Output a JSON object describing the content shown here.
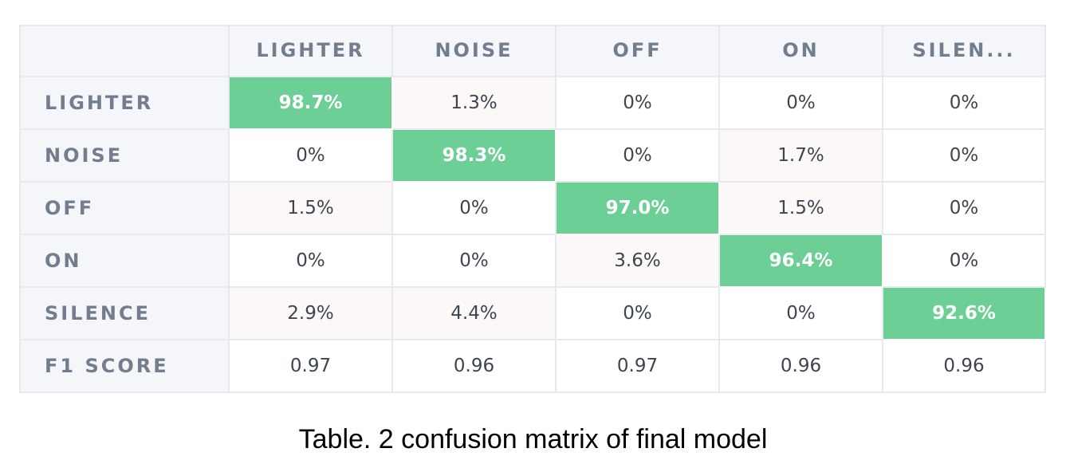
{
  "chart_data": {
    "type": "heatmap",
    "title": "",
    "column_labels": [
      "LIGHTER",
      "NOISE",
      "OFF",
      "ON",
      "SILEN..."
    ],
    "row_labels": [
      "LIGHTER",
      "NOISE",
      "OFF",
      "ON",
      "SILENCE"
    ],
    "values": [
      [
        98.7,
        1.3,
        0,
        0,
        0
      ],
      [
        0,
        98.3,
        0,
        1.7,
        0
      ],
      [
        1.5,
        0,
        97.0,
        1.5,
        0
      ],
      [
        0,
        0,
        3.6,
        96.4,
        0
      ],
      [
        2.9,
        4.4,
        0,
        0,
        92.6
      ]
    ],
    "cell_text": [
      [
        "98.7%",
        "1.3%",
        "0%",
        "0%",
        "0%"
      ],
      [
        "0%",
        "98.3%",
        "0%",
        "1.7%",
        "0%"
      ],
      [
        "1.5%",
        "0%",
        "97.0%",
        "1.5%",
        "0%"
      ],
      [
        "0%",
        "0%",
        "3.6%",
        "96.4%",
        "0%"
      ],
      [
        "2.9%",
        "4.4%",
        "0%",
        "0%",
        "92.6%"
      ]
    ],
    "unit": "%",
    "footer_row": {
      "label": "F1 SCORE",
      "values": [
        0.97,
        0.96,
        0.97,
        0.96,
        0.96
      ],
      "text": [
        "0.97",
        "0.96",
        "0.97",
        "0.96",
        "0.96"
      ]
    }
  },
  "colors": {
    "diagonal": "#6ccf95",
    "off_diagonal_nonzero": "#fcf8f8",
    "header_background": "#f4f6f9",
    "header_text": "#727d8e",
    "cell_text": "#3e4550"
  },
  "caption": "Table. 2 confusion matrix of final model"
}
